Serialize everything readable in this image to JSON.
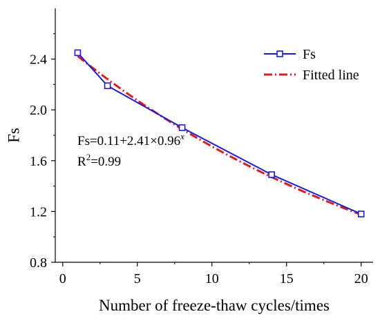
{
  "chart_data": {
    "type": "line",
    "xlabel": "Number of freeze-thaw cycles/times",
    "ylabel": "Fs",
    "xlim": [
      -0.5,
      20.8
    ],
    "ylim": [
      0.8,
      2.8
    ],
    "xticks": [
      0,
      5,
      10,
      15,
      20
    ],
    "yticks": [
      0.8,
      1.2,
      1.6,
      2.0,
      2.4
    ],
    "ytick_labels": [
      "0.8",
      "1.2",
      "1.6",
      "2.0",
      "2.4"
    ],
    "grid": false,
    "legend_position": "top-right",
    "series": [
      {
        "name": "Fs",
        "color": "#1a1adc",
        "marker": "open-square",
        "x": [
          1,
          3,
          8,
          14,
          20
        ],
        "y": [
          2.45,
          2.19,
          1.86,
          1.49,
          1.18
        ]
      },
      {
        "name": "Fitted line",
        "color": "#e01a1a",
        "style": "dash-dot",
        "model": {
          "a": 0.11,
          "b": 2.41,
          "c": 0.96
        },
        "x_range": [
          1,
          20
        ]
      }
    ],
    "annotations": {
      "equation_base": "Fs=0.11+2.41×0.96",
      "equation_exp": "x",
      "r2_prefix": "R",
      "r2_sup": "2",
      "r2_suffix": "=0.99"
    }
  }
}
